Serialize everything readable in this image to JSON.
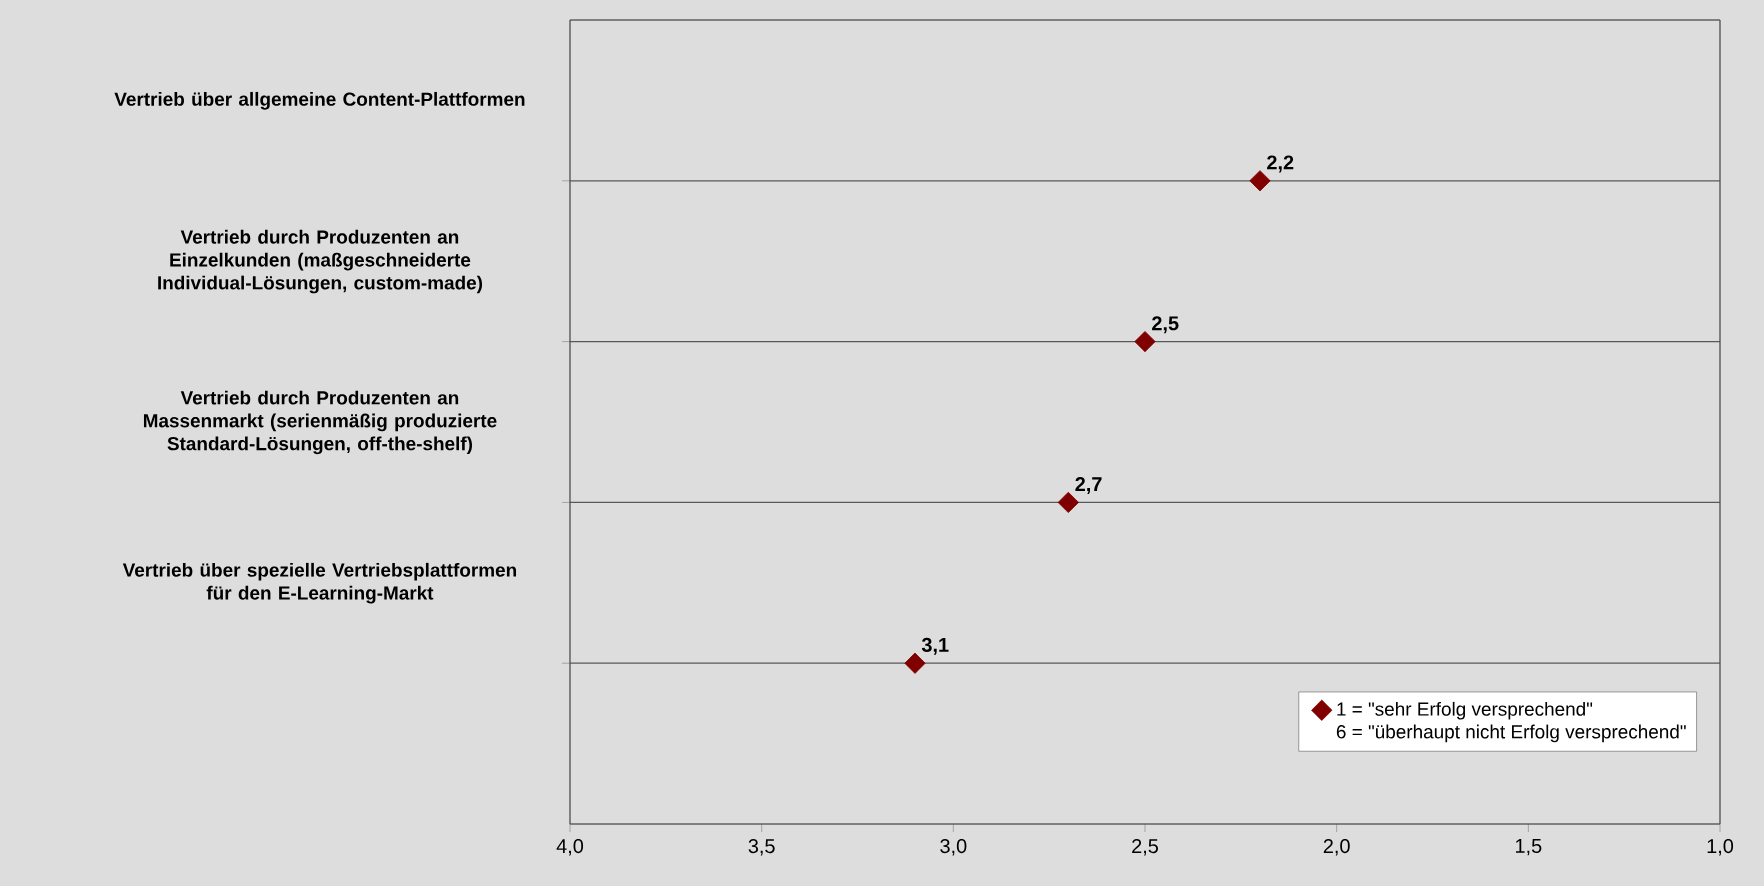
{
  "chart_data": {
    "type": "scatter",
    "orientation": "horizontal",
    "categories": [
      "Vertrieb über allgemeine Content-Plattformen",
      "Vertrieb durch Produzenten an Einzelkunden (maßgeschneiderte Individual-Lösungen, custom-made)",
      "Vertrieb durch Produzenten an Massenmarkt (serienmäßig produzierte Standard-Lösungen, off-the-shelf)",
      "Vertrieb über spezielle Vertriebsplattformen für den E-Learning-Markt"
    ],
    "series": [
      {
        "name": "1 = \"sehr Erfolg versprechend\"",
        "color": "#800000",
        "values": [
          2.2,
          2.5,
          2.7,
          3.1
        ],
        "value_labels": [
          "2,2",
          "2,5",
          "2,7",
          "3,1"
        ]
      }
    ],
    "xlim": [
      4,
      1
    ],
    "xticks": [
      {
        "value": 4,
        "label": "4,0"
      },
      {
        "value": 3.5,
        "label": "3,5"
      },
      {
        "value": 3,
        "label": "3,0"
      },
      {
        "value": 2.5,
        "label": "2,5"
      },
      {
        "value": 2,
        "label": "2,0"
      },
      {
        "value": 1.5,
        "label": "1,5"
      },
      {
        "value": 1,
        "label": "1,0"
      }
    ],
    "grid": "y",
    "legend": "bottom right",
    "marker": "diamond",
    "annotations": [
      "6 = \"überhaupt nicht Erfolg versprechend\""
    ]
  }
}
